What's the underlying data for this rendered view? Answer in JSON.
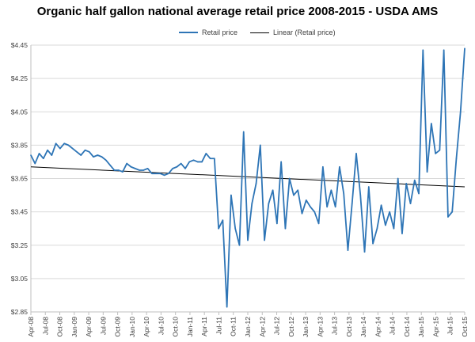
{
  "chart_data": {
    "type": "line",
    "title": "Organic half gallon national average retail price 2008-2015 - USDA AMS",
    "xlabel": "",
    "ylabel": "",
    "ylim": [
      2.85,
      4.45
    ],
    "y_ticks": [
      "$2.85",
      "$3.05",
      "$3.25",
      "$3.45",
      "$3.65",
      "$3.85",
      "$4.05",
      "$4.25",
      "$4.45"
    ],
    "x_ticks": [
      "Apr-08",
      "Jul-08",
      "Oct-08",
      "Jan-09",
      "Apr-09",
      "Jul-09",
      "Oct-09",
      "Jan-10",
      "Apr-10",
      "Jul-10",
      "Oct-10",
      "Jan-11",
      "Apr-11",
      "Jul-11",
      "Oct-11",
      "Jan-12",
      "Apr-12",
      "Jul-12",
      "Oct-12",
      "Jan-13",
      "Apr-13",
      "Jul-13",
      "Oct-13",
      "Jan-14",
      "Apr-14",
      "Jul-14",
      "Oct-14",
      "Jan-15",
      "Apr-15",
      "Jul-15",
      "Oct-15"
    ],
    "grid": "horizontal",
    "legend_position": "top",
    "series": [
      {
        "name": "Retail price",
        "color": "#2e75b6",
        "style": "line",
        "values": [
          3.79,
          3.74,
          3.8,
          3.77,
          3.82,
          3.79,
          3.86,
          3.83,
          3.86,
          3.85,
          3.83,
          3.81,
          3.79,
          3.82,
          3.81,
          3.78,
          3.79,
          3.78,
          3.76,
          3.73,
          3.7,
          3.7,
          3.69,
          3.74,
          3.72,
          3.71,
          3.7,
          3.7,
          3.71,
          3.68,
          3.68,
          3.68,
          3.67,
          3.68,
          3.71,
          3.72,
          3.74,
          3.71,
          3.75,
          3.76,
          3.75,
          3.75,
          3.8,
          3.77,
          3.77,
          3.35,
          3.4,
          2.88,
          3.55,
          3.35,
          3.25,
          3.93,
          3.28,
          3.5,
          3.62,
          3.85,
          3.28,
          3.5,
          3.58,
          3.38,
          3.75,
          3.35,
          3.65,
          3.55,
          3.58,
          3.44,
          3.52,
          3.48,
          3.45,
          3.38,
          3.72,
          3.48,
          3.58,
          3.48,
          3.72,
          3.56,
          3.22,
          3.5,
          3.8,
          3.55,
          3.21,
          3.6,
          3.26,
          3.35,
          3.49,
          3.37,
          3.45,
          3.35,
          3.65,
          3.32,
          3.62,
          3.5,
          3.64,
          3.56,
          4.42,
          3.69,
          3.98,
          3.8,
          3.82,
          4.42,
          3.42,
          3.45,
          3.77,
          4.05,
          4.43
        ]
      },
      {
        "name": "Linear (Retail price)",
        "color": "#000000",
        "style": "trendline",
        "values": [
          3.72,
          3.6
        ]
      }
    ]
  }
}
